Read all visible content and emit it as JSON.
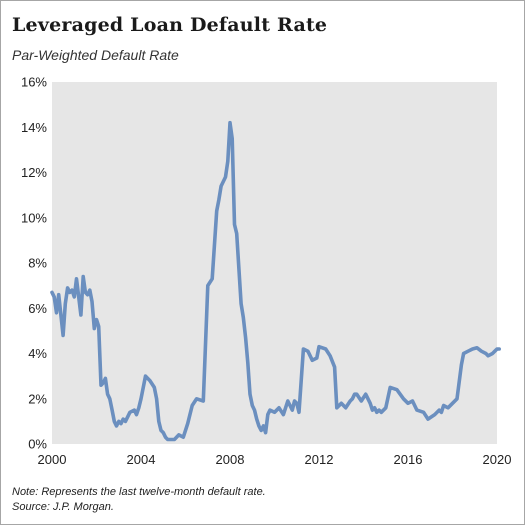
{
  "title": "Leveraged Loan Default Rate",
  "subtitle": "Par-Weighted Default Rate",
  "note": "Note: Represents the last twelve-month default rate.",
  "source": "Source: J.P. Morgan.",
  "chart_data": {
    "type": "line",
    "title": "Leveraged Loan Default Rate",
    "subtitle": "Par-Weighted Default Rate",
    "xlabel": "",
    "ylabel": "",
    "xlim": [
      2000,
      2020
    ],
    "ylim": [
      0,
      16
    ],
    "x_ticks": [
      2000,
      2004,
      2008,
      2012,
      2016,
      2020
    ],
    "x_tick_labels": [
      "2000",
      "2004",
      "2008",
      "2012",
      "2016",
      "2020"
    ],
    "y_ticks": [
      0,
      2,
      4,
      6,
      8,
      10,
      12,
      14,
      16
    ],
    "y_tick_labels": [
      "0%",
      "2%",
      "4%",
      "6%",
      "8%",
      "10%",
      "12%",
      "14%",
      "16%"
    ],
    "grid": false,
    "legend": "none",
    "colors": {
      "line": "#6b8fbf",
      "plot_background": "#e6e6e6"
    },
    "series": [
      {
        "x": [
          2000.0,
          2000.1,
          2000.2,
          2000.3,
          2000.4,
          2000.5,
          2000.6,
          2000.7,
          2000.8,
          2000.9,
          2001.0,
          2001.1,
          2001.2,
          2001.3,
          2001.4,
          2001.5,
          2001.6,
          2001.7,
          2001.8,
          2001.9,
          2002.0,
          2002.1,
          2002.2,
          2002.3,
          2002.4,
          2002.5,
          2002.6,
          2002.7,
          2002.8,
          2002.9,
          2003.0,
          2003.1,
          2003.2,
          2003.3,
          2003.5,
          2003.7,
          2003.8,
          2003.9,
          2004.0,
          2004.2,
          2004.4,
          2004.6,
          2004.7,
          2004.8,
          2004.9,
          2005.0,
          2005.1,
          2005.2,
          2005.3,
          2005.5,
          2005.7,
          2005.9,
          2006.1,
          2006.3,
          2006.5,
          2006.8,
          2007.0,
          2007.2,
          2007.4,
          2007.5,
          2007.6,
          2007.8,
          2007.9,
          2008.0,
          2008.1,
          2008.2,
          2008.3,
          2008.5,
          2008.6,
          2008.7,
          2008.8,
          2008.9,
          2009.0,
          2009.1,
          2009.2,
          2009.3,
          2009.4,
          2009.5,
          2009.6,
          2009.7,
          2009.8,
          2010.0,
          2010.2,
          2010.4,
          2010.6,
          2010.8,
          2010.9,
          2011.0,
          2011.1,
          2011.3,
          2011.5,
          2011.7,
          2011.9,
          2012.0,
          2012.3,
          2012.5,
          2012.7,
          2012.8,
          2013.0,
          2013.2,
          2013.4,
          2013.5,
          2013.6,
          2013.7,
          2013.9,
          2014.1,
          2014.3,
          2014.4,
          2014.5,
          2014.6,
          2014.7,
          2014.8,
          2015.0,
          2015.2,
          2015.5,
          2015.8,
          2016.0,
          2016.2,
          2016.4,
          2016.7,
          2016.9,
          2017.2,
          2017.4,
          2017.5,
          2017.6,
          2017.8,
          2018.0,
          2018.2,
          2018.4,
          2018.5,
          2018.7,
          2018.9,
          2019.1,
          2019.3,
          2019.5,
          2019.6,
          2019.8,
          2019.9,
          2020.0,
          2020.1
        ],
        "values": [
          6.7,
          6.5,
          5.8,
          6.6,
          5.7,
          4.8,
          6.2,
          6.9,
          6.7,
          6.8,
          6.5,
          7.3,
          6.5,
          5.7,
          7.4,
          6.7,
          6.6,
          6.8,
          6.3,
          5.1,
          5.5,
          5.2,
          2.6,
          2.7,
          2.9,
          2.2,
          2.0,
          1.5,
          1.0,
          0.8,
          1.0,
          0.9,
          1.1,
          1.0,
          1.4,
          1.5,
          1.3,
          1.6,
          2.0,
          3.0,
          2.8,
          2.5,
          2.0,
          1.0,
          0.6,
          0.5,
          0.3,
          0.2,
          0.2,
          0.2,
          0.4,
          0.3,
          0.9,
          1.7,
          2.0,
          1.9,
          7.0,
          7.3,
          10.3,
          10.8,
          11.4,
          11.8,
          12.5,
          14.2,
          13.5,
          9.7,
          9.3,
          6.2,
          5.6,
          4.7,
          3.6,
          2.2,
          1.7,
          1.5,
          1.1,
          0.8,
          0.6,
          0.8,
          0.5,
          1.3,
          1.5,
          1.4,
          1.6,
          1.3,
          1.9,
          1.5,
          1.9,
          1.8,
          1.4,
          4.2,
          4.1,
          3.7,
          3.8,
          4.3,
          4.2,
          3.9,
          3.4,
          1.6,
          1.8,
          1.6,
          1.9,
          2.0,
          2.2,
          2.2,
          1.9,
          2.2,
          1.8,
          1.5,
          1.6,
          1.4,
          1.5,
          1.4,
          1.6,
          2.5,
          2.4,
          2.0,
          1.8,
          1.9,
          1.5,
          1.4,
          1.1,
          1.3,
          1.5,
          1.4,
          1.7,
          1.6,
          1.8,
          2.0,
          3.5,
          4.0,
          4.1,
          4.2,
          4.25,
          4.1,
          4.0,
          3.9,
          4.0,
          4.1,
          4.2,
          4.2
        ]
      }
    ]
  }
}
